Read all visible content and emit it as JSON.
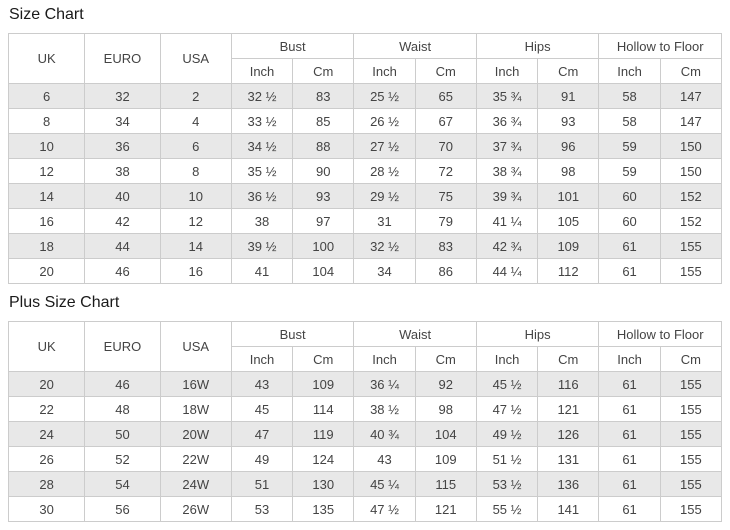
{
  "colors": {
    "stripe_row": "#e8e8e8",
    "border": "#cccccc",
    "cell_text": "#444444",
    "title_text": "#1a1a1a",
    "background": "#ffffff"
  },
  "tables": [
    {
      "title": "Size Chart",
      "col_headers": [
        "UK",
        "EURO",
        "USA"
      ],
      "group_headers": [
        "Bust",
        "Waist",
        "Hips",
        "Hollow to Floor"
      ],
      "sub_headers": [
        "Inch",
        "Cm"
      ],
      "rows": [
        [
          "6",
          "32",
          "2",
          "32 ½",
          "83",
          "25 ½",
          "65",
          "35 ¾",
          "91",
          "58",
          "147"
        ],
        [
          "8",
          "34",
          "4",
          "33 ½",
          "85",
          "26 ½",
          "67",
          "36 ¾",
          "93",
          "58",
          "147"
        ],
        [
          "10",
          "36",
          "6",
          "34 ½",
          "88",
          "27 ½",
          "70",
          "37 ¾",
          "96",
          "59",
          "150"
        ],
        [
          "12",
          "38",
          "8",
          "35 ½",
          "90",
          "28 ½",
          "72",
          "38 ¾",
          "98",
          "59",
          "150"
        ],
        [
          "14",
          "40",
          "10",
          "36 ½",
          "93",
          "29 ½",
          "75",
          "39 ¾",
          "101",
          "60",
          "152"
        ],
        [
          "16",
          "42",
          "12",
          "38",
          "97",
          "31",
          "79",
          "41 ¼",
          "105",
          "60",
          "152"
        ],
        [
          "18",
          "44",
          "14",
          "39 ½",
          "100",
          "32 ½",
          "83",
          "42 ¾",
          "109",
          "61",
          "155"
        ],
        [
          "20",
          "46",
          "16",
          "41",
          "104",
          "34",
          "86",
          "44 ¼",
          "112",
          "61",
          "155"
        ]
      ]
    },
    {
      "title": "Plus Size Chart",
      "col_headers": [
        "UK",
        "EURO",
        "USA"
      ],
      "group_headers": [
        "Bust",
        "Waist",
        "Hips",
        "Hollow to Floor"
      ],
      "sub_headers": [
        "Inch",
        "Cm"
      ],
      "rows": [
        [
          "20",
          "46",
          "16W",
          "43",
          "109",
          "36 ¼",
          "92",
          "45 ½",
          "116",
          "61",
          "155"
        ],
        [
          "22",
          "48",
          "18W",
          "45",
          "114",
          "38 ½",
          "98",
          "47 ½",
          "121",
          "61",
          "155"
        ],
        [
          "24",
          "50",
          "20W",
          "47",
          "119",
          "40 ¾",
          "104",
          "49 ½",
          "126",
          "61",
          "155"
        ],
        [
          "26",
          "52",
          "22W",
          "49",
          "124",
          "43",
          "109",
          "51 ½",
          "131",
          "61",
          "155"
        ],
        [
          "28",
          "54",
          "24W",
          "51",
          "130",
          "45 ¼",
          "115",
          "53 ½",
          "136",
          "61",
          "155"
        ],
        [
          "30",
          "56",
          "26W",
          "53",
          "135",
          "47 ½",
          "121",
          "55 ½",
          "141",
          "61",
          "155"
        ]
      ]
    }
  ]
}
